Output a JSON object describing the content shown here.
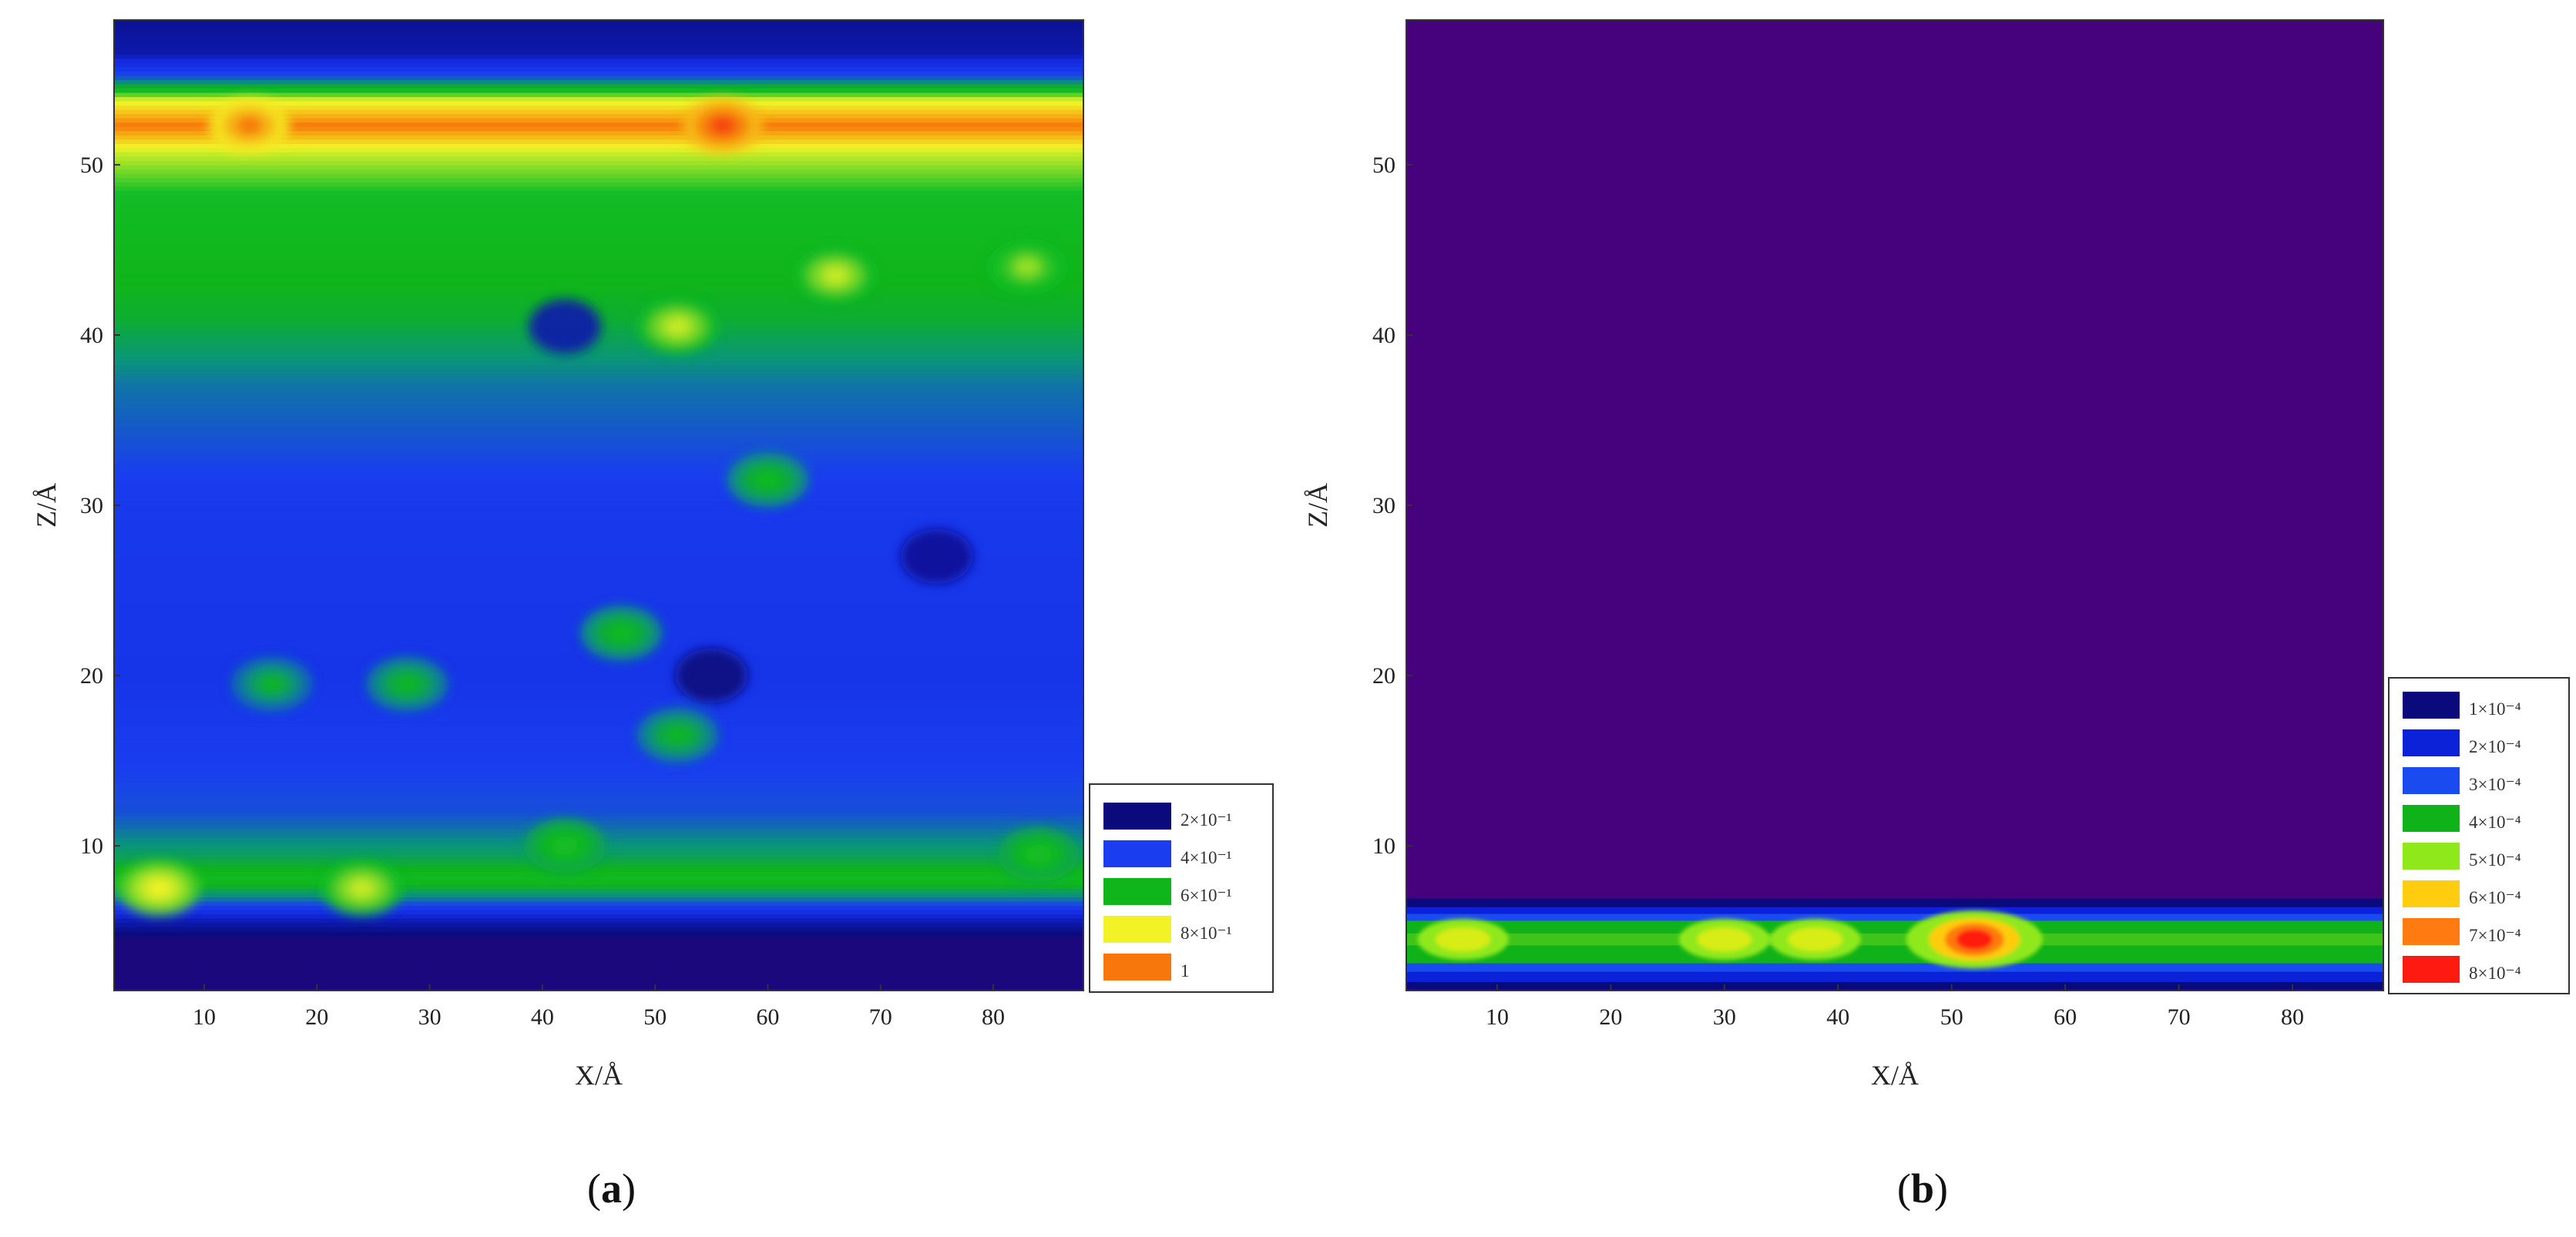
{
  "chart_data": [
    {
      "type": "heatmap",
      "panel": "a",
      "xlabel": "X/Å",
      "ylabel": "Z/Å",
      "xlim": [
        2,
        88
      ],
      "ylim": [
        1.5,
        58.5
      ],
      "xticks": [
        10,
        20,
        30,
        40,
        50,
        60,
        70,
        80
      ],
      "yticks": [
        10,
        20,
        30,
        40,
        50
      ],
      "grid": false,
      "legend_position": "bottom-right, outside plot",
      "legend": [
        {
          "label": "2×10⁻¹",
          "color": "#0a0a7c"
        },
        {
          "label": "4×10⁻¹",
          "color": "#1a3df0"
        },
        {
          "label": "6×10⁻¹",
          "color": "#0fb51a"
        },
        {
          "label": "8×10⁻¹",
          "color": "#f2f227"
        },
        {
          "label": "1",
          "color": "#f7770d"
        }
      ],
      "levels": [
        0.2,
        0.4,
        0.6,
        0.8,
        1.0
      ],
      "profile_z_to_value": [
        [
          1.5,
          0.2
        ],
        [
          4.5,
          0.2
        ],
        [
          5.8,
          0.28
        ],
        [
          6.8,
          0.45
        ],
        [
          8.0,
          0.62
        ],
        [
          9.5,
          0.52
        ],
        [
          12.0,
          0.42
        ],
        [
          20.0,
          0.36
        ],
        [
          30.0,
          0.38
        ],
        [
          37.0,
          0.46
        ],
        [
          41.0,
          0.56
        ],
        [
          45.0,
          0.6
        ],
        [
          48.0,
          0.64
        ],
        [
          50.5,
          0.76
        ],
        [
          52.3,
          0.95
        ],
        [
          53.8,
          0.8
        ],
        [
          55.0,
          0.45
        ],
        [
          56.5,
          0.26
        ],
        [
          58.5,
          0.24
        ]
      ],
      "hotspots": [
        {
          "x": 56,
          "z": 52.3,
          "value": 1.0
        },
        {
          "x": 14,
          "z": 52.3,
          "value": 0.95
        },
        {
          "x": 6,
          "z": 7.5,
          "value": 0.82
        },
        {
          "x": 24,
          "z": 7.5,
          "value": 0.78
        },
        {
          "x": 52,
          "z": 40.5,
          "value": 0.78
        },
        {
          "x": 66,
          "z": 43.5,
          "value": 0.78
        },
        {
          "x": 83,
          "z": 44,
          "value": 0.74
        },
        {
          "x": 60,
          "z": 31.5,
          "value": 0.62
        },
        {
          "x": 47,
          "z": 22.5,
          "value": 0.62
        },
        {
          "x": 42,
          "z": 10,
          "value": 0.66
        },
        {
          "x": 84,
          "z": 9.5,
          "value": 0.66
        },
        {
          "x": 28,
          "z": 19.5,
          "value": 0.6
        },
        {
          "x": 52,
          "z": 16.5,
          "value": 0.6
        },
        {
          "x": 16,
          "z": 19.5,
          "value": 0.58
        }
      ],
      "coldspots": [
        {
          "x": 42,
          "z": 40.5,
          "value": 0.26
        },
        {
          "x": 55,
          "z": 20,
          "value": 0.22
        },
        {
          "x": 75,
          "z": 27,
          "value": 0.24
        }
      ]
    },
    {
      "type": "heatmap",
      "panel": "b",
      "xlabel": "X/Å",
      "ylabel": "Z/Å",
      "xlim": [
        2,
        88
      ],
      "ylim": [
        1.5,
        58.5
      ],
      "xticks": [
        10,
        20,
        30,
        40,
        50,
        60,
        70,
        80
      ],
      "yticks": [
        10,
        20,
        30,
        40,
        50
      ],
      "grid": false,
      "legend_position": "bottom-right, outside plot",
      "legend": [
        {
          "label": "1×10⁻⁴",
          "color": "#0a0a7c"
        },
        {
          "label": "2×10⁻⁴",
          "color": "#0b22d8"
        },
        {
          "label": "3×10⁻⁴",
          "color": "#1a4bf0"
        },
        {
          "label": "4×10⁻⁴",
          "color": "#10b21a"
        },
        {
          "label": "5×10⁻⁴",
          "color": "#8fe81a"
        },
        {
          "label": "6×10⁻⁴",
          "color": "#ffcc10"
        },
        {
          "label": "7×10⁻⁴",
          "color": "#ff7a10"
        },
        {
          "label": "8×10⁻⁴",
          "color": "#ff1a10"
        }
      ],
      "background_color": "#46027c",
      "band": {
        "z_center": 4.5,
        "value_at_center": 0.00045,
        "z_extent": [
          1.5,
          6.8
        ]
      },
      "hotspots": [
        {
          "x": 52,
          "z": 4.5,
          "value": 0.0008
        },
        {
          "x": 30,
          "z": 4.5,
          "value": 0.00055
        },
        {
          "x": 7,
          "z": 4.5,
          "value": 0.00055
        },
        {
          "x": 38,
          "z": 4.5,
          "value": 0.0005
        }
      ]
    }
  ],
  "panel_labels": {
    "a": {
      "open": "(",
      "letter": "a",
      "close": ")"
    },
    "b": {
      "open": "(",
      "letter": "b",
      "close": ")"
    }
  }
}
